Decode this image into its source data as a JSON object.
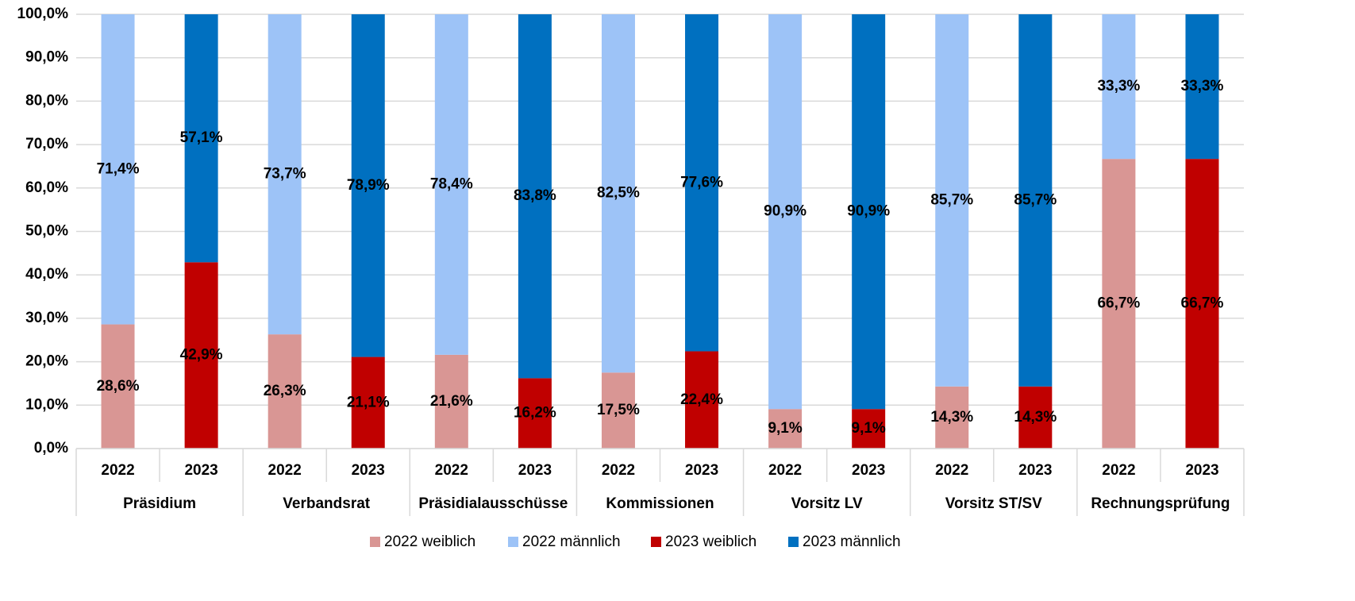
{
  "chart_data": {
    "type": "stacked_bar",
    "groups": [
      "Präsidium",
      "Verbandsrat",
      "Präsidialausschüsse",
      "Kommissionen",
      "Vorsitz LV",
      "Vorsitz ST/SV",
      "Rechnungsprüfung"
    ],
    "categories": [
      "2022",
      "2023",
      "2022",
      "2023",
      "2022",
      "2023",
      "2022",
      "2023",
      "2022",
      "2023",
      "2022",
      "2023",
      "2022",
      "2023"
    ],
    "series": [
      {
        "name": "2022 weiblich",
        "color": "#d99694",
        "values": [
          28.6,
          null,
          26.3,
          null,
          21.6,
          null,
          17.5,
          null,
          9.1,
          null,
          14.3,
          null,
          66.7,
          null
        ],
        "value_labels": [
          "28,6%",
          null,
          "26,3%",
          null,
          "21,6%",
          null,
          "17,5%",
          null,
          "9,1%",
          null,
          "14,3%",
          null,
          "66,7%",
          null
        ]
      },
      {
        "name": "2022 männlich",
        "color": "#9dc3f7",
        "values": [
          71.4,
          null,
          73.7,
          null,
          78.4,
          null,
          82.5,
          null,
          90.9,
          null,
          85.7,
          null,
          33.3,
          null
        ],
        "value_labels": [
          "71,4%",
          null,
          "73,7%",
          null,
          "78,4%",
          null,
          "82,5%",
          null,
          "90,9%",
          null,
          "85,7%",
          null,
          "33,3%",
          null
        ]
      },
      {
        "name": "2023 weiblich",
        "color": "#c00000",
        "values": [
          null,
          42.9,
          null,
          21.1,
          null,
          16.2,
          null,
          22.4,
          null,
          9.1,
          null,
          14.3,
          null,
          66.7
        ],
        "value_labels": [
          null,
          "42,9%",
          null,
          "21,1%",
          null,
          "16,2%",
          null,
          "22,4%",
          null,
          "9,1%",
          null,
          "14,3%",
          null,
          "66,7%"
        ]
      },
      {
        "name": "2023 männlich",
        "color": "#0070c0",
        "values": [
          null,
          57.1,
          null,
          78.9,
          null,
          83.8,
          null,
          77.6,
          null,
          90.9,
          null,
          85.7,
          null,
          33.3
        ],
        "value_labels": [
          null,
          "57,1%",
          null,
          "78,9%",
          null,
          "83,8%",
          null,
          "77,6%",
          null,
          "90,9%",
          null,
          "85,7%",
          null,
          "33,3%"
        ]
      }
    ],
    "ylim": [
      0,
      100
    ],
    "yticks": [
      {
        "value": 0,
        "label": "0,0%"
      },
      {
        "value": 10,
        "label": "10,0%"
      },
      {
        "value": 20,
        "label": "20,0%"
      },
      {
        "value": 30,
        "label": "30,0%"
      },
      {
        "value": 40,
        "label": "40,0%"
      },
      {
        "value": 50,
        "label": "50,0%"
      },
      {
        "value": 60,
        "label": "60,0%"
      },
      {
        "value": 70,
        "label": "70,0%"
      },
      {
        "value": 80,
        "label": "80,0%"
      },
      {
        "value": 90,
        "label": "90,0%"
      },
      {
        "value": 100,
        "label": "100,0%"
      }
    ],
    "grid": true,
    "legend": "bottom"
  }
}
